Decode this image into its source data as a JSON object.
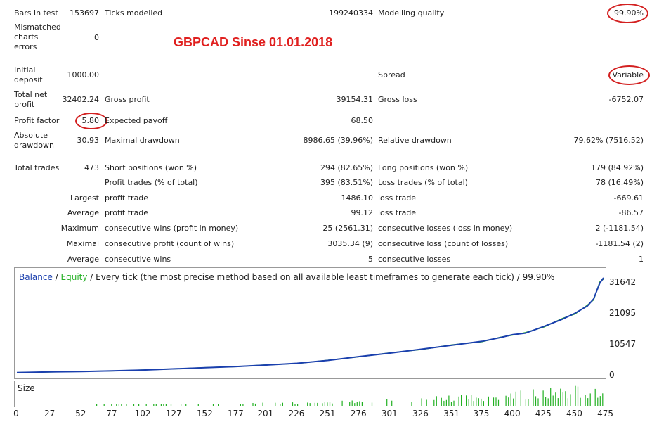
{
  "title": "GBPCAD Sinse 01.01.2018",
  "rows": {
    "bars_in_test": {
      "label": "Bars in test",
      "value": "153697"
    },
    "ticks_modelled": {
      "label": "Ticks modelled",
      "value": "199240334"
    },
    "modelling_quality": {
      "label": "Modelling quality",
      "value": "99.90%"
    },
    "mismatched": {
      "label": "Mismatched charts errors",
      "value": "0"
    },
    "initial_deposit": {
      "label": "Initial deposit",
      "value": "1000.00"
    },
    "spread": {
      "label": "Spread",
      "value": "Variable"
    },
    "total_net_profit": {
      "label": "Total net profit",
      "value": "32402.24"
    },
    "gross_profit": {
      "label": "Gross profit",
      "value": "39154.31"
    },
    "gross_loss": {
      "label": "Gross loss",
      "value": "-6752.07"
    },
    "profit_factor": {
      "label": "Profit factor",
      "value": "5.80"
    },
    "expected_payoff": {
      "label": "Expected payoff",
      "value": "68.50"
    },
    "absolute_drawdown": {
      "label": "Absolute drawdown",
      "value": "30.93"
    },
    "maximal_drawdown": {
      "label": "Maximal drawdown",
      "value": "8986.65 (39.96%)"
    },
    "relative_drawdown": {
      "label": "Relative drawdown",
      "value": "79.62% (7516.52)"
    },
    "total_trades": {
      "label": "Total trades",
      "value": "473"
    },
    "short_positions": {
      "label": "Short positions (won %)",
      "value": "294 (82.65%)"
    },
    "long_positions": {
      "label": "Long positions (won %)",
      "value": "179 (84.92%)"
    },
    "profit_trades": {
      "label": "Profit trades (% of total)",
      "value": "395 (83.51%)"
    },
    "loss_trades": {
      "label": "Loss trades (% of total)",
      "value": "78 (16.49%)"
    },
    "largest": {
      "prefix": "Largest",
      "profit_label": "profit trade",
      "profit_value": "1486.10",
      "loss_label": "loss trade",
      "loss_value": "-669.61"
    },
    "average": {
      "prefix": "Average",
      "profit_label": "profit trade",
      "profit_value": "99.12",
      "loss_label": "loss trade",
      "loss_value": "-86.57"
    },
    "maximum": {
      "prefix": "Maximum",
      "wins_label": "consecutive wins (profit in money)",
      "wins_value": "25 (2561.31)",
      "losses_label": "consecutive losses (loss in money)",
      "losses_value": "2 (-1181.54)"
    },
    "maximal": {
      "prefix": "Maximal",
      "wins_label": "consecutive profit (count of wins)",
      "wins_value": "3035.34 (9)",
      "losses_label": "consecutive loss (count of losses)",
      "losses_value": "-1181.54 (2)"
    },
    "average_consec": {
      "prefix": "Average",
      "wins_label": "consecutive wins",
      "wins_value": "5",
      "losses_label": "consecutive losses",
      "losses_value": "1"
    }
  },
  "chart": {
    "legend_balance": "Balance",
    "legend_sep": " / ",
    "legend_equity": "Equity",
    "legend_rest": " / Every tick (the most precise method based on all available least timeframes to generate each tick) / 99.90%",
    "size_label": "Size",
    "colors": {
      "balance": "#1a3fae",
      "equity": "#24b024",
      "size_bars": "#22b022"
    }
  },
  "chart_data": {
    "type": "line",
    "y_ticks": [
      "31642",
      "21095",
      "10547",
      "0"
    ],
    "x_ticks": [
      "0",
      "27",
      "52",
      "77",
      "102",
      "127",
      "152",
      "177",
      "201",
      "226",
      "251",
      "276",
      "301",
      "326",
      "351",
      "375",
      "400",
      "425",
      "450",
      "475"
    ],
    "ylim": [
      0,
      33402
    ],
    "xlim": [
      0,
      473
    ],
    "series": [
      {
        "name": "Balance",
        "x": [
          0,
          27,
          52,
          77,
          102,
          127,
          152,
          177,
          201,
          226,
          251,
          276,
          301,
          326,
          351,
          375,
          390,
          400,
          410,
          425,
          440,
          450,
          460,
          465,
          470,
          473
        ],
        "values": [
          1000,
          1250,
          1400,
          1600,
          1900,
          2300,
          2700,
          3100,
          3600,
          4200,
          5200,
          6500,
          7700,
          9000,
          10400,
          11700,
          13000,
          14000,
          14500,
          16800,
          19300,
          21300,
          23800,
          26200,
          31600,
          33402
        ]
      }
    ]
  }
}
